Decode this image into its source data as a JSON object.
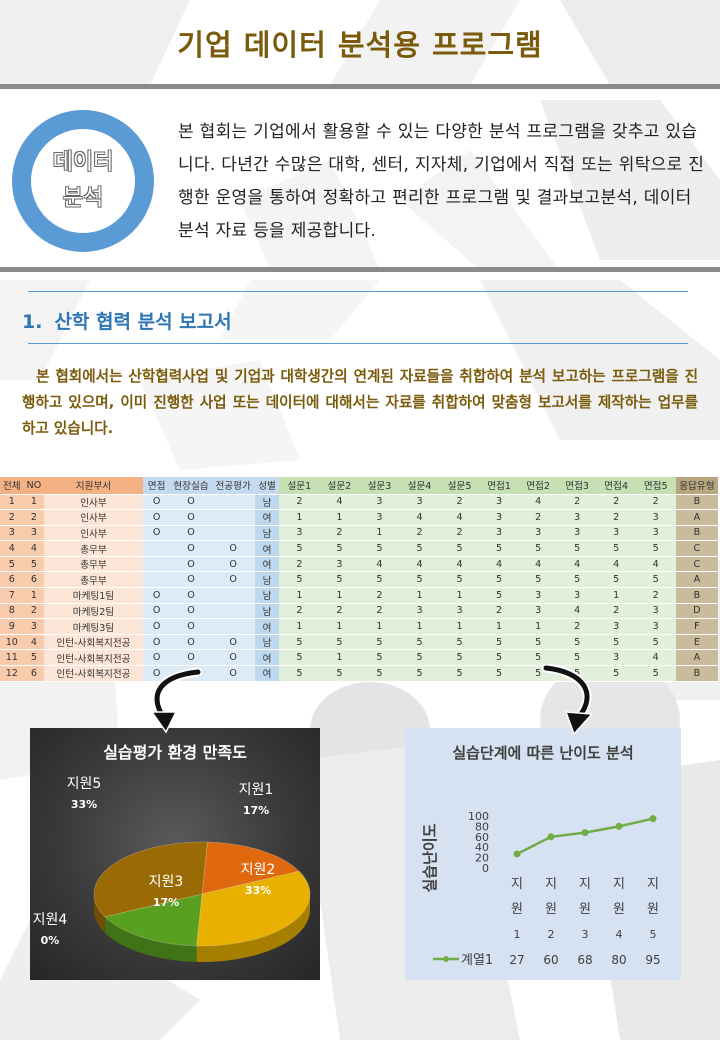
{
  "title": "기업 데이터 분석용 프로그램",
  "badge": {
    "line1": "데이터",
    "line2": "분석"
  },
  "intro": "본 협회는 기업에서 활용할 수 있는 다양한 분석 프로그램을 갖추고 있습니다. 다년간 수많은 대학, 센터, 지자체, 기업에서 직접 또는 위탁으로 진행한 운영을 통하여 정확하고 편리한 프로그램 및 결과보고분석, 데이터 분석 자료 등을 제공합니다.",
  "section": {
    "number": "1.",
    "heading": "산학 협력 분석 보고서",
    "body": "본 협회에서는 산학협력사업 및 기업과 대학생간의 연계된 자료들을 취합하여 분석 보고하는 프로그램을 진행하고 있으며, 이미 진행한 사업 또는 데이터에 대해서는 자료를 취합하여 맞춤형 보고서를 제작하는 업무를 하고 있습니다."
  },
  "table": {
    "headers": [
      "전체",
      "NO",
      "지원부서",
      "면접",
      "현장실습",
      "전공평가",
      "성별",
      "설문1",
      "설문2",
      "설문3",
      "설문4",
      "설문5",
      "면접1",
      "면접2",
      "면접3",
      "면접4",
      "면접5",
      "응답유형"
    ],
    "rows": [
      [
        "1",
        "1",
        "인사부",
        "O",
        "O",
        "",
        "남",
        "2",
        "4",
        "3",
        "3",
        "2",
        "3",
        "4",
        "2",
        "2",
        "2",
        "B"
      ],
      [
        "2",
        "2",
        "인사부",
        "O",
        "O",
        "",
        "여",
        "1",
        "1",
        "3",
        "4",
        "4",
        "3",
        "2",
        "3",
        "2",
        "3",
        "A"
      ],
      [
        "3",
        "3",
        "인사부",
        "O",
        "O",
        "",
        "남",
        "3",
        "2",
        "1",
        "2",
        "2",
        "3",
        "3",
        "3",
        "3",
        "3",
        "B"
      ],
      [
        "4",
        "4",
        "총무부",
        "",
        "O",
        "O",
        "여",
        "5",
        "5",
        "5",
        "5",
        "5",
        "5",
        "5",
        "5",
        "5",
        "5",
        "C"
      ],
      [
        "5",
        "5",
        "총무부",
        "",
        "O",
        "O",
        "여",
        "2",
        "3",
        "4",
        "4",
        "4",
        "4",
        "4",
        "4",
        "4",
        "4",
        "C"
      ],
      [
        "6",
        "6",
        "총무부",
        "",
        "O",
        "O",
        "남",
        "5",
        "5",
        "5",
        "5",
        "5",
        "5",
        "5",
        "5",
        "5",
        "5",
        "A"
      ],
      [
        "7",
        "1",
        "마케팅1팀",
        "O",
        "O",
        "",
        "남",
        "1",
        "1",
        "2",
        "1",
        "1",
        "5",
        "3",
        "3",
        "1",
        "2",
        "B"
      ],
      [
        "8",
        "2",
        "마케팅2팀",
        "O",
        "O",
        "",
        "남",
        "2",
        "2",
        "2",
        "3",
        "3",
        "2",
        "3",
        "4",
        "2",
        "3",
        "D"
      ],
      [
        "9",
        "3",
        "마케팅3팀",
        "O",
        "O",
        "",
        "여",
        "1",
        "1",
        "1",
        "1",
        "1",
        "1",
        "1",
        "2",
        "3",
        "3",
        "F"
      ],
      [
        "10",
        "4",
        "인턴-사회복지전공",
        "O",
        "O",
        "O",
        "남",
        "5",
        "5",
        "5",
        "5",
        "5",
        "5",
        "5",
        "5",
        "5",
        "5",
        "E"
      ],
      [
        "11",
        "5",
        "인턴-사회복지전공",
        "O",
        "O",
        "O",
        "여",
        "5",
        "1",
        "5",
        "5",
        "5",
        "5",
        "5",
        "5",
        "3",
        "4",
        "A"
      ],
      [
        "12",
        "6",
        "인턴-사회복지전공",
        "O",
        "O",
        "O",
        "여",
        "5",
        "5",
        "5",
        "5",
        "5",
        "5",
        "5",
        "5",
        "5",
        "5",
        "B"
      ]
    ]
  },
  "chart_data": [
    {
      "type": "pie",
      "title": "실습평가 환경 만족도",
      "categories": [
        "지원1",
        "지원2",
        "지원3",
        "지원4",
        "지원5"
      ],
      "values": [
        17,
        33,
        17,
        0,
        33
      ],
      "labels": [
        "17%",
        "33%",
        "17%",
        "0%",
        "33%"
      ],
      "colors": [
        "#e06910",
        "#e8b000",
        "#59a020",
        "#4a70b0",
        "#9a6b05"
      ]
    },
    {
      "type": "line",
      "title": "실습단계에 따른 난이도 분석",
      "ylabel": "실습난이도",
      "ylim": [
        0,
        100
      ],
      "yticks": [
        0,
        20,
        40,
        60,
        80,
        100
      ],
      "categories": [
        "지원1",
        "지원2",
        "지원3",
        "지원4",
        "지원5"
      ],
      "series": [
        {
          "name": "계열1",
          "values": [
            27,
            60,
            68,
            80,
            95
          ]
        }
      ],
      "color": "#70ad47"
    }
  ]
}
